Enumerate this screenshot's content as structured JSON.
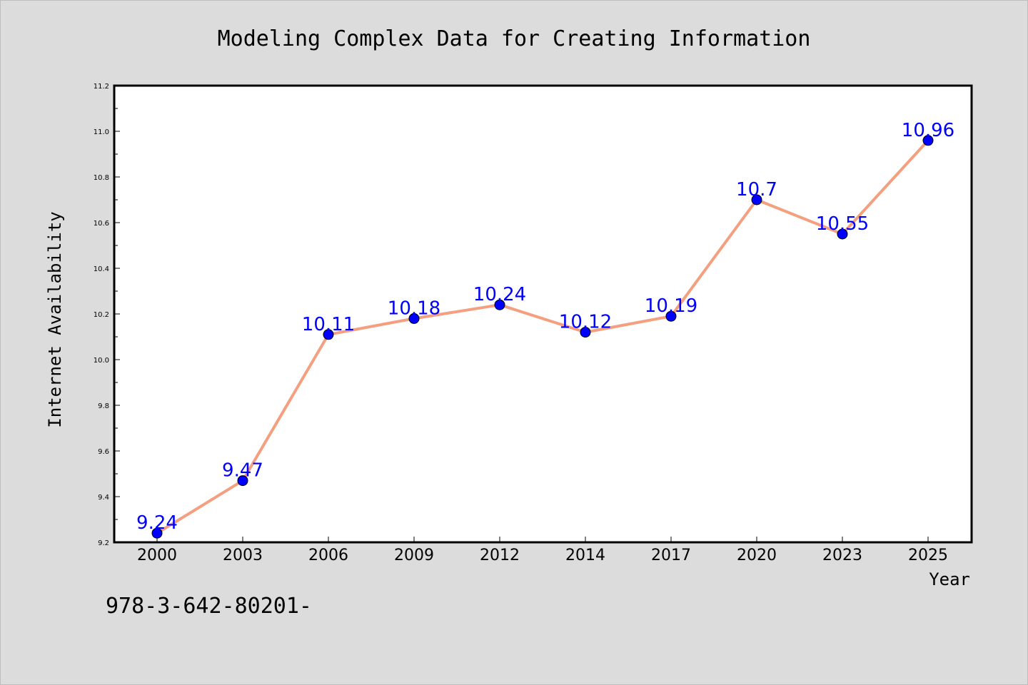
{
  "colors": {
    "background": "#dcdcdc",
    "plot_background": "#ffffff",
    "line": "#f4a080",
    "marker": "#0000ff",
    "data_label": "#0000ff"
  },
  "footer": {
    "code": "978-3-642-80201-"
  },
  "chart_data": {
    "type": "line",
    "title": "Modeling Complex Data for Creating Information",
    "xlabel": "Year",
    "ylabel": "Internet Availability",
    "categories": [
      "2000",
      "2003",
      "2006",
      "2009",
      "2012",
      "2014",
      "2017",
      "2020",
      "2023",
      "2025"
    ],
    "series": [
      {
        "values": [
          9.24,
          9.47,
          10.11,
          10.18,
          10.24,
          10.12,
          10.19,
          10.7,
          10.55,
          10.96
        ]
      }
    ],
    "data_labels": [
      "9.24",
      "9.47",
      "10.11",
      "10.18",
      "10.24",
      "10.12",
      "10.19",
      "10.7",
      "10.55",
      "10.96"
    ],
    "yticks": [
      "9.2",
      "9.4",
      "9.6",
      "9.8",
      "10.0",
      "10.2",
      "10.4",
      "10.6",
      "10.8",
      "11.0",
      "11.2"
    ],
    "ylim": [
      9.2,
      11.2
    ],
    "grid": false,
    "legend": "none"
  }
}
